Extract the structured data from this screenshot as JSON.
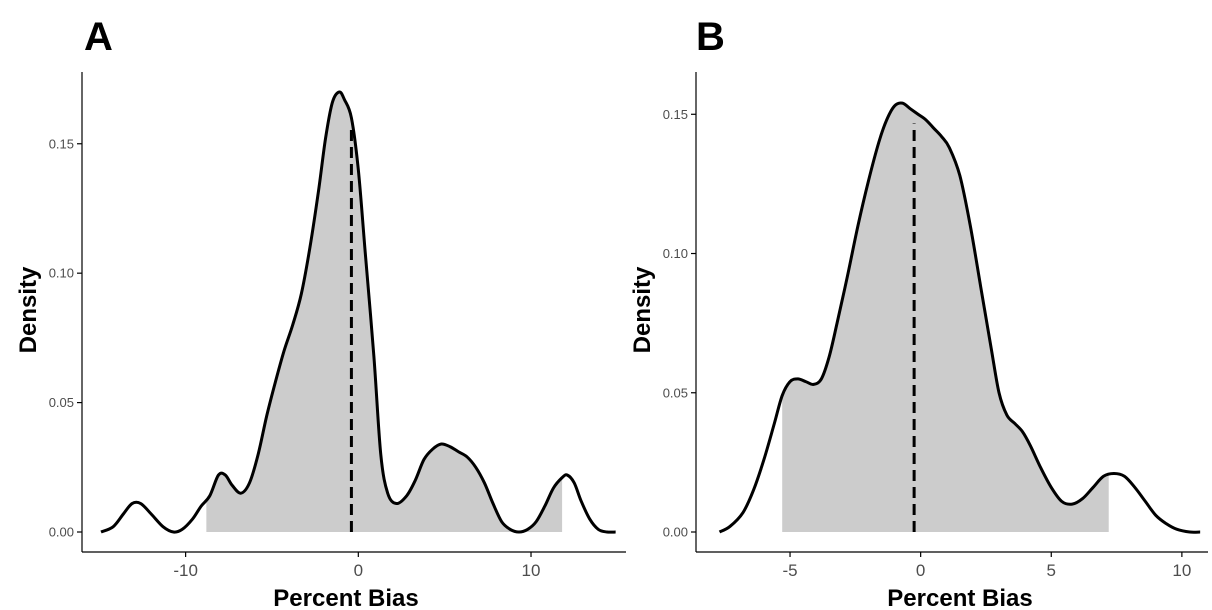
{
  "chart_data": [
    {
      "type": "area",
      "panel": "A",
      "xlabel": "Percent Bias",
      "ylabel": "Density",
      "xlim": [
        -16,
        15.5
      ],
      "ylim": [
        0,
        0.17
      ],
      "xticks": [
        -10,
        0,
        10
      ],
      "xtick_labels": [
        "-10",
        "0",
        "10"
      ],
      "yticks": [
        0,
        0.05,
        0.1,
        0.15
      ],
      "ytick_labels": [
        "0.00",
        "0.05",
        "0.10",
        "0.15"
      ],
      "grid": false,
      "fill_color": "#cccccc",
      "line_color": "#000000",
      "shaded_range": [
        -8.8,
        11.8
      ],
      "mean_line_x": -0.4,
      "series": [
        {
          "x": [
            -14.9,
            -14.2,
            -13.6,
            -13.1,
            -12.6,
            -12.0,
            -11.3,
            -10.7,
            -10.2,
            -9.6,
            -9.1,
            -8.6,
            -8.1,
            -7.7,
            -7.3,
            -6.8,
            -6.3,
            -5.8,
            -5.3,
            -4.8,
            -4.3,
            -3.8,
            -3.3,
            -2.8,
            -2.3,
            -1.9,
            -1.5,
            -1.1,
            -0.8,
            -0.4,
            0.0,
            0.4,
            0.9,
            1.3,
            1.7,
            2.2,
            2.8,
            3.3,
            3.8,
            4.3,
            4.8,
            5.3,
            5.8,
            6.3,
            6.8,
            7.3,
            7.8,
            8.3,
            8.8,
            9.3,
            9.8,
            10.3,
            10.8,
            11.3,
            11.8,
            12.1,
            12.5,
            12.9,
            13.4,
            13.9,
            14.4,
            14.9
          ],
          "y": [
            0.0,
            0.002,
            0.007,
            0.011,
            0.011,
            0.007,
            0.002,
            0.0,
            0.001,
            0.005,
            0.01,
            0.014,
            0.022,
            0.022,
            0.018,
            0.015,
            0.019,
            0.03,
            0.045,
            0.058,
            0.07,
            0.08,
            0.092,
            0.11,
            0.132,
            0.152,
            0.166,
            0.17,
            0.167,
            0.16,
            0.14,
            0.108,
            0.068,
            0.03,
            0.015,
            0.011,
            0.014,
            0.02,
            0.028,
            0.032,
            0.034,
            0.033,
            0.031,
            0.029,
            0.025,
            0.019,
            0.011,
            0.004,
            0.001,
            0.0,
            0.001,
            0.004,
            0.01,
            0.017,
            0.021,
            0.022,
            0.019,
            0.012,
            0.005,
            0.001,
            0.0,
            0.0
          ]
        }
      ]
    },
    {
      "type": "area",
      "panel": "B",
      "xlabel": "Percent Bias",
      "ylabel": "Density",
      "xlim": [
        -8.6,
        11
      ],
      "ylim": [
        0,
        0.158
      ],
      "xticks": [
        -5,
        0,
        5,
        10
      ],
      "xtick_labels": [
        "-5",
        "0",
        "5",
        "10"
      ],
      "yticks": [
        0,
        0.05,
        0.1,
        0.15
      ],
      "ytick_labels": [
        "0.00",
        "0.05",
        "0.10",
        "0.15"
      ],
      "grid": false,
      "fill_color": "#cccccc",
      "line_color": "#000000",
      "shaded_range": [
        -5.3,
        7.2
      ],
      "mean_line_x": -0.25,
      "series": [
        {
          "x": [
            -7.7,
            -7.3,
            -6.8,
            -6.4,
            -6.0,
            -5.6,
            -5.3,
            -5.0,
            -4.7,
            -4.4,
            -4.1,
            -3.8,
            -3.5,
            -3.2,
            -2.8,
            -2.4,
            -2.0,
            -1.6,
            -1.3,
            -1.0,
            -0.7,
            -0.4,
            -0.1,
            0.2,
            0.5,
            0.8,
            1.1,
            1.5,
            1.9,
            2.3,
            2.7,
            3.0,
            3.3,
            3.6,
            3.9,
            4.2,
            4.6,
            5.0,
            5.4,
            5.8,
            6.2,
            6.6,
            7.0,
            7.4,
            7.8,
            8.2,
            8.6,
            9.0,
            9.4,
            9.8,
            10.3,
            10.7
          ],
          "y": [
            0.0,
            0.002,
            0.007,
            0.015,
            0.026,
            0.039,
            0.049,
            0.054,
            0.055,
            0.054,
            0.053,
            0.055,
            0.063,
            0.075,
            0.092,
            0.11,
            0.126,
            0.14,
            0.148,
            0.153,
            0.154,
            0.152,
            0.15,
            0.148,
            0.145,
            0.142,
            0.138,
            0.128,
            0.11,
            0.088,
            0.066,
            0.05,
            0.042,
            0.039,
            0.036,
            0.031,
            0.023,
            0.016,
            0.011,
            0.01,
            0.012,
            0.016,
            0.02,
            0.021,
            0.02,
            0.016,
            0.011,
            0.006,
            0.003,
            0.001,
            0.0,
            0.0
          ]
        }
      ]
    }
  ]
}
